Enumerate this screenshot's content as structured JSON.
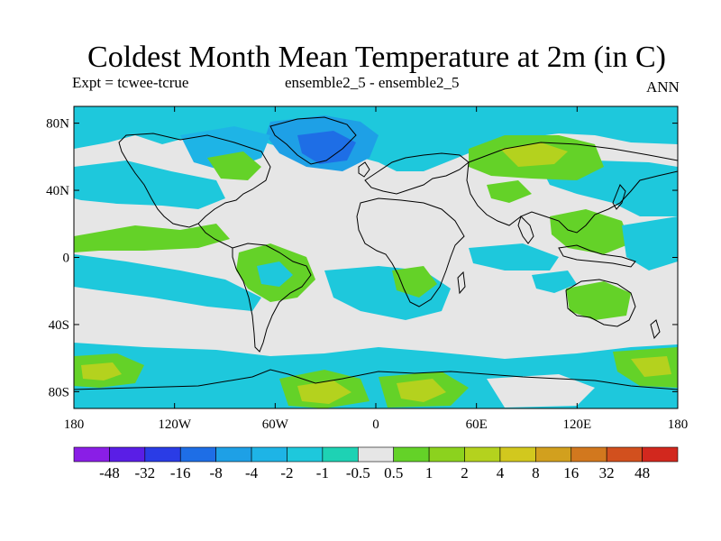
{
  "title": "Coldest Month Mean Temperature at 2m (in C)",
  "left_label": "Expt = tcwee-tcrue",
  "center_label": "ensemble2_5 - ensemble2_5",
  "right_label": "ANN",
  "lat_ticks": [
    {
      "value": 80,
      "label": "80N"
    },
    {
      "value": 40,
      "label": "40N"
    },
    {
      "value": 0,
      "label": "0"
    },
    {
      "value": -40,
      "label": "40S"
    },
    {
      "value": -80,
      "label": "80S"
    }
  ],
  "lon_ticks": [
    {
      "value": -180,
      "label": "180"
    },
    {
      "value": -120,
      "label": "120W"
    },
    {
      "value": -60,
      "label": "60W"
    },
    {
      "value": 0,
      "label": "0"
    },
    {
      "value": 60,
      "label": "60E"
    },
    {
      "value": 120,
      "label": "120E"
    },
    {
      "value": 180,
      "label": "180"
    }
  ],
  "colorbar": {
    "labels": [
      "-48",
      "-32",
      "-16",
      "-8",
      "-4",
      "-2",
      "-1",
      "-0.5",
      "0.5",
      "1",
      "2",
      "4",
      "8",
      "16",
      "32",
      "48"
    ],
    "colors": [
      "#8a1ee6",
      "#5a1ee6",
      "#2a3ce6",
      "#1e6ee6",
      "#1ea0e6",
      "#1eb4e6",
      "#1ec8dc",
      "#1ed2b4",
      "#e6e6e6",
      "#64d228",
      "#8cd21e",
      "#b4d21e",
      "#d2c81e",
      "#d2a01e",
      "#d2781e",
      "#d2501e",
      "#d2281e"
    ]
  },
  "map_colors": {
    "neutral": "#e6e6e6",
    "cyan": "#1ec8dc",
    "light_blue": "#1eb4e6",
    "blue": "#1ea0e6",
    "green": "#64d228",
    "yellow_green": "#b4d21e",
    "coast": "#000000"
  }
}
